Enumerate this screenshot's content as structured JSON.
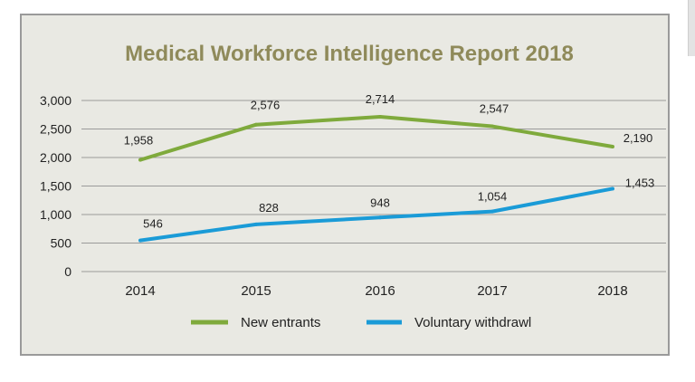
{
  "chart_data": {
    "type": "line",
    "title": "Medical Workforce Intelligence Report 2018",
    "categories": [
      "2014",
      "2015",
      "2016",
      "2017",
      "2018"
    ],
    "series": [
      {
        "name": "New entrants",
        "color": "#7faa3c",
        "values": [
          1958,
          2576,
          2714,
          2547,
          2190
        ],
        "labels": [
          "1,958",
          "2,576",
          "2,714",
          "2,547",
          "2,190"
        ]
      },
      {
        "name": "Voluntary withdrawl",
        "color": "#1a9bd7",
        "values": [
          546,
          828,
          948,
          1054,
          1453
        ],
        "labels": [
          "546",
          "828",
          "948",
          "1,054",
          "1,453"
        ]
      }
    ],
    "ylim": [
      0,
      3000
    ],
    "yticks": [
      0,
      500,
      1000,
      1500,
      2000,
      2500,
      3000
    ],
    "ytick_labels": [
      "0",
      "500",
      "1,000",
      "1,500",
      "2,000",
      "2,500",
      "3,000"
    ],
    "grid": true,
    "legend_position": "bottom",
    "colors": {
      "title": "#8f8a5a",
      "panel": "#e9e9e3",
      "grid": "#9a9a9a"
    }
  }
}
